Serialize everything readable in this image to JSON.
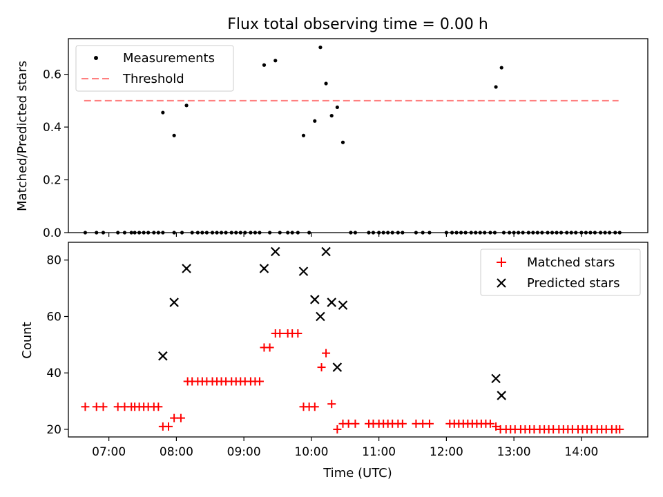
{
  "chart_data": [
    {
      "type": "scatter",
      "title": "Flux total observing time = 0.00 h",
      "xlabel": "",
      "ylabel": "Matched/Predicted stars",
      "xlim": [
        "06:24",
        "14:59"
      ],
      "ylim": [
        0,
        0.735
      ],
      "yticks": [
        0.0,
        0.2,
        0.4,
        0.6
      ],
      "ytick_labels": [
        "0.0",
        "0.2",
        "0.4",
        "0.6"
      ],
      "legend_position": "top-left",
      "threshold": {
        "name": "Threshold",
        "y": 0.5,
        "x_start": "06:38",
        "x_end": "14:33",
        "color": "#ff7f7f",
        "style": "dashed"
      },
      "series": [
        {
          "name": "Measurements",
          "color": "#000000",
          "marker": "dot",
          "points": [
            [
              "06:39",
              0
            ],
            [
              "06:49",
              0
            ],
            [
              "06:55",
              0
            ],
            [
              "07:08",
              0
            ],
            [
              "07:14",
              0
            ],
            [
              "07:20",
              0
            ],
            [
              "07:23",
              0
            ],
            [
              "07:27",
              0
            ],
            [
              "07:31",
              0
            ],
            [
              "07:35",
              0
            ],
            [
              "07:40",
              0
            ],
            [
              "07:44",
              0
            ],
            [
              "07:48",
              0
            ],
            [
              "07:48",
              0.455
            ],
            [
              "07:58",
              0
            ],
            [
              "07:58",
              0.368
            ],
            [
              "08:05",
              0
            ],
            [
              "08:09",
              0.482
            ],
            [
              "08:14",
              0
            ],
            [
              "08:19",
              0
            ],
            [
              "08:23",
              0
            ],
            [
              "08:27",
              0
            ],
            [
              "08:32",
              0
            ],
            [
              "08:36",
              0
            ],
            [
              "08:40",
              0
            ],
            [
              "08:44",
              0
            ],
            [
              "08:49",
              0
            ],
            [
              "08:53",
              0
            ],
            [
              "08:57",
              0
            ],
            [
              "09:01",
              0
            ],
            [
              "09:06",
              0
            ],
            [
              "09:10",
              0
            ],
            [
              "09:14",
              0
            ],
            [
              "09:18",
              0.635
            ],
            [
              "09:23",
              0
            ],
            [
              "09:28",
              0.652
            ],
            [
              "09:32",
              0
            ],
            [
              "09:39",
              0
            ],
            [
              "09:43",
              0
            ],
            [
              "09:48",
              0
            ],
            [
              "09:53",
              0.368
            ],
            [
              "09:58",
              0
            ],
            [
              "10:03",
              0.423
            ],
            [
              "10:08",
              0.702
            ],
            [
              "10:13",
              0.565
            ],
            [
              "10:18",
              0.443
            ],
            [
              "10:23",
              0.475
            ],
            [
              "10:28",
              0.342
            ],
            [
              "10:35",
              0
            ],
            [
              "10:39",
              0
            ],
            [
              "10:51",
              0
            ],
            [
              "10:55",
              0
            ],
            [
              "11:00",
              0
            ],
            [
              "11:04",
              0
            ],
            [
              "11:08",
              0
            ],
            [
              "11:12",
              0
            ],
            [
              "11:17",
              0
            ],
            [
              "11:21",
              0
            ],
            [
              "11:33",
              0
            ],
            [
              "11:39",
              0
            ],
            [
              "11:45",
              0
            ],
            [
              "12:00",
              0
            ],
            [
              "12:05",
              0
            ],
            [
              "12:09",
              0
            ],
            [
              "12:13",
              0
            ],
            [
              "12:17",
              0
            ],
            [
              "12:22",
              0
            ],
            [
              "12:26",
              0
            ],
            [
              "12:30",
              0
            ],
            [
              "12:34",
              0
            ],
            [
              "12:39",
              0
            ],
            [
              "12:43",
              0
            ],
            [
              "12:44",
              0.552
            ],
            [
              "12:49",
              0.625
            ],
            [
              "12:51",
              0
            ],
            [
              "12:56",
              0
            ],
            [
              "13:00",
              0
            ],
            [
              "13:04",
              0
            ],
            [
              "13:08",
              0
            ],
            [
              "13:13",
              0
            ],
            [
              "13:17",
              0
            ],
            [
              "13:21",
              0
            ],
            [
              "13:25",
              0
            ],
            [
              "13:30",
              0
            ],
            [
              "13:34",
              0
            ],
            [
              "13:38",
              0
            ],
            [
              "13:42",
              0
            ],
            [
              "13:47",
              0
            ],
            [
              "13:51",
              0
            ],
            [
              "13:55",
              0
            ],
            [
              "14:00",
              0
            ],
            [
              "14:04",
              0
            ],
            [
              "14:08",
              0
            ],
            [
              "14:12",
              0
            ],
            [
              "14:17",
              0
            ],
            [
              "14:21",
              0
            ],
            [
              "14:25",
              0
            ],
            [
              "14:30",
              0
            ],
            [
              "14:34",
              0
            ]
          ]
        }
      ]
    },
    {
      "type": "scatter",
      "title": "",
      "xlabel": "Time (UTC)",
      "ylabel": "Count",
      "xlim": [
        "06:24",
        "14:59"
      ],
      "ylim": [
        17.3,
        86.3
      ],
      "xticks": [
        "07:00",
        "08:00",
        "09:00",
        "10:00",
        "11:00",
        "12:00",
        "13:00",
        "14:00"
      ],
      "xtick_labels": [
        "07:00",
        "08:00",
        "09:00",
        "10:00",
        "11:00",
        "12:00",
        "13:00",
        "14:00"
      ],
      "yticks": [
        20,
        40,
        60,
        80
      ],
      "ytick_labels": [
        "20",
        "40",
        "60",
        "80"
      ],
      "legend_position": "top-right",
      "series": [
        {
          "name": "Matched stars",
          "color": "#ff0000",
          "marker": "plus",
          "points": [
            [
              "06:39",
              28
            ],
            [
              "06:49",
              28
            ],
            [
              "06:55",
              28
            ],
            [
              "07:08",
              28
            ],
            [
              "07:14",
              28
            ],
            [
              "07:20",
              28
            ],
            [
              "07:23",
              28
            ],
            [
              "07:27",
              28
            ],
            [
              "07:31",
              28
            ],
            [
              "07:35",
              28
            ],
            [
              "07:40",
              28
            ],
            [
              "07:44",
              28
            ],
            [
              "07:48",
              21
            ],
            [
              "07:53",
              21
            ],
            [
              "07:58",
              24
            ],
            [
              "08:04",
              24
            ],
            [
              "08:10",
              37
            ],
            [
              "08:14",
              37
            ],
            [
              "08:19",
              37
            ],
            [
              "08:23",
              37
            ],
            [
              "08:27",
              37
            ],
            [
              "08:32",
              37
            ],
            [
              "08:36",
              37
            ],
            [
              "08:40",
              37
            ],
            [
              "08:44",
              37
            ],
            [
              "08:49",
              37
            ],
            [
              "08:53",
              37
            ],
            [
              "08:57",
              37
            ],
            [
              "09:01",
              37
            ],
            [
              "09:06",
              37
            ],
            [
              "09:10",
              37
            ],
            [
              "09:14",
              37
            ],
            [
              "09:18",
              49
            ],
            [
              "09:23",
              49
            ],
            [
              "09:28",
              54
            ],
            [
              "09:32",
              54
            ],
            [
              "09:39",
              54
            ],
            [
              "09:43",
              54
            ],
            [
              "09:48",
              54
            ],
            [
              "09:53",
              28
            ],
            [
              "09:58",
              28
            ],
            [
              "10:03",
              28
            ],
            [
              "10:09",
              42
            ],
            [
              "10:13",
              47
            ],
            [
              "10:18",
              29
            ],
            [
              "10:23",
              20
            ],
            [
              "10:28",
              22
            ],
            [
              "10:33",
              22
            ],
            [
              "10:39",
              22
            ],
            [
              "10:51",
              22
            ],
            [
              "10:55",
              22
            ],
            [
              "11:00",
              22
            ],
            [
              "11:04",
              22
            ],
            [
              "11:08",
              22
            ],
            [
              "11:12",
              22
            ],
            [
              "11:17",
              22
            ],
            [
              "11:21",
              22
            ],
            [
              "11:33",
              22
            ],
            [
              "11:39",
              22
            ],
            [
              "11:45",
              22
            ],
            [
              "12:03",
              22
            ],
            [
              "12:07",
              22
            ],
            [
              "12:11",
              22
            ],
            [
              "12:15",
              22
            ],
            [
              "12:19",
              22
            ],
            [
              "12:23",
              22
            ],
            [
              "12:27",
              22
            ],
            [
              "12:31",
              22
            ],
            [
              "12:35",
              22
            ],
            [
              "12:39",
              22
            ],
            [
              "12:44",
              21
            ],
            [
              "12:48",
              20
            ],
            [
              "12:53",
              20
            ],
            [
              "12:57",
              20
            ],
            [
              "13:01",
              20
            ],
            [
              "13:06",
              20
            ],
            [
              "13:10",
              20
            ],
            [
              "13:14",
              20
            ],
            [
              "13:18",
              20
            ],
            [
              "13:23",
              20
            ],
            [
              "13:27",
              20
            ],
            [
              "13:31",
              20
            ],
            [
              "13:35",
              20
            ],
            [
              "13:40",
              20
            ],
            [
              "13:44",
              20
            ],
            [
              "13:48",
              20
            ],
            [
              "13:52",
              20
            ],
            [
              "13:57",
              20
            ],
            [
              "14:01",
              20
            ],
            [
              "14:05",
              20
            ],
            [
              "14:09",
              20
            ],
            [
              "14:14",
              20
            ],
            [
              "14:18",
              20
            ],
            [
              "14:22",
              20
            ],
            [
              "14:27",
              20
            ],
            [
              "14:31",
              20
            ],
            [
              "14:34",
              20
            ]
          ]
        },
        {
          "name": "Predicted stars",
          "color": "#000000",
          "marker": "x",
          "points": [
            [
              "07:48",
              46
            ],
            [
              "07:58",
              65
            ],
            [
              "08:09",
              77
            ],
            [
              "09:18",
              77
            ],
            [
              "09:28",
              83
            ],
            [
              "09:53",
              76
            ],
            [
              "10:03",
              66
            ],
            [
              "10:08",
              60
            ],
            [
              "10:13",
              83
            ],
            [
              "10:18",
              65
            ],
            [
              "10:23",
              42
            ],
            [
              "10:28",
              64
            ],
            [
              "12:44",
              38
            ],
            [
              "12:49",
              32
            ]
          ]
        }
      ]
    }
  ]
}
